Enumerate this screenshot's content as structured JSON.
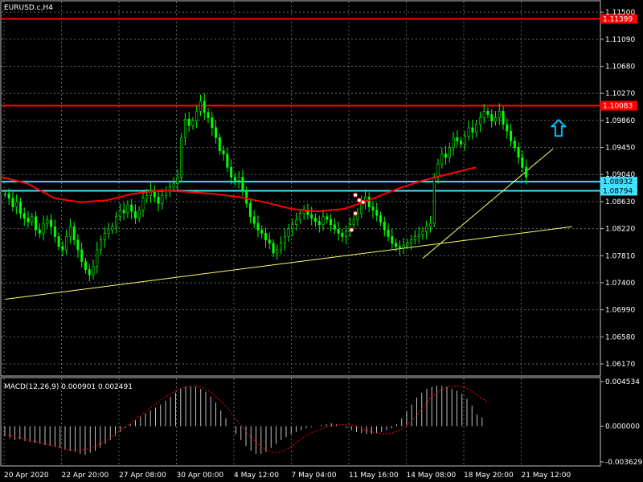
{
  "symbol_label": "EURUSD.c,H4",
  "colors": {
    "background": "#000000",
    "frame": "#c0c0c0",
    "grid": "#5a6a6a",
    "candle": "#00ff00",
    "ma": "#ff0000",
    "hline_red": "#ff0000",
    "hline_cyan": "#40e0ff",
    "trendline": "#ffff66",
    "arrow": "#00bfff",
    "macd_hist": "#c0c0c0",
    "macd_signal": "#ff0000",
    "text": "#ffffff"
  },
  "price_axis": {
    "min": 1.06,
    "max": 1.1166,
    "ticks": [
      "1.11500",
      "1.11090",
      "1.10680",
      "1.10270",
      "1.09860",
      "1.09450",
      "1.09040",
      "1.08630",
      "1.08220",
      "1.07810",
      "1.07400",
      "1.06990",
      "1.06580",
      "1.06170"
    ]
  },
  "time_axis": {
    "labels": [
      "20 Apr 2020",
      "22 Apr 20:00",
      "27 Apr 08:00",
      "30 Apr 00:00",
      "4 May 12:00",
      "7 May 04:00",
      "11 May 16:00",
      "14 May 08:00",
      "18 May 20:00",
      "21 May 12:00"
    ]
  },
  "price_lines": [
    {
      "label": "1.11399",
      "value": 1.11399,
      "color": "red"
    },
    {
      "label": "1.10083",
      "value": 1.10083,
      "color": "red"
    },
    {
      "label": "1.08932",
      "value": 1.08932,
      "color": "cyan"
    },
    {
      "label": "1.08794",
      "value": 1.08794,
      "color": "cyan"
    }
  ],
  "chart_data": {
    "type": "candlestick",
    "instrument": "EURUSD.c",
    "timeframe": "H4",
    "close_series": [
      1.0875,
      1.0868,
      1.0855,
      1.0862,
      1.0845,
      1.0838,
      1.0832,
      1.084,
      1.082,
      1.0815,
      1.083,
      1.0835,
      1.0825,
      1.081,
      1.0795,
      1.079,
      1.081,
      1.0825,
      1.0805,
      1.079,
      1.0772,
      1.076,
      1.0752,
      1.0765,
      1.079,
      1.0805,
      1.0815,
      1.082,
      1.0825,
      1.084,
      1.085,
      1.0846,
      1.0858,
      1.0848,
      1.0838,
      1.085,
      1.0868,
      1.0872,
      1.088,
      1.087,
      1.086,
      1.0872,
      1.088,
      1.0885,
      1.089,
      1.09,
      1.096,
      1.0988,
      1.0978,
      1.0985,
      1.1,
      1.1015,
      1.0998,
      1.099,
      1.0975,
      1.096,
      1.094,
      1.0935,
      1.0915,
      1.09,
      1.0895,
      1.09,
      1.088,
      1.086,
      1.084,
      1.083,
      1.082,
      1.0815,
      1.0805,
      1.08,
      1.0785,
      1.079,
      1.08,
      1.081,
      1.0822,
      1.0828,
      1.0835,
      1.0845,
      1.085,
      1.0843,
      1.0838,
      1.0833,
      1.0828,
      1.084,
      1.0836,
      1.0828,
      1.0821,
      1.0815,
      1.081,
      1.0818,
      1.0828,
      1.0836,
      1.0845,
      1.0862,
      1.087,
      1.0855,
      1.085,
      1.0842,
      1.0832,
      1.082,
      1.081,
      1.08,
      1.0795,
      1.0793,
      1.0797,
      1.08,
      1.0805,
      1.081,
      1.0813,
      1.0818,
      1.0825,
      1.083,
      1.09,
      1.092,
      1.0935,
      1.093,
      1.0945,
      1.096,
      1.0955,
      1.095,
      1.0962,
      1.0975,
      1.0968,
      1.098,
      1.099,
      1.1,
      1.0995,
      1.0985,
      1.099,
      1.1,
      1.098,
      1.097,
      1.0955,
      1.0945,
      1.093,
      1.0915,
      1.09
    ],
    "moving_average": {
      "values": [
        1.09,
        1.089,
        1.0868,
        1.0862,
        1.0865,
        1.0875,
        1.088,
        1.0878,
        1.0875,
        1.087,
        1.0862,
        1.0852,
        1.0848,
        1.0852,
        1.0866,
        1.0882,
        1.0895,
        1.0905,
        1.0915
      ]
    },
    "trendlines": [
      {
        "from": {
          "candle": 0,
          "price": 1.0715
        },
        "to": {
          "candle": 148,
          "price": 1.0825
        }
      },
      {
        "from": {
          "candle": 109,
          "price": 1.0777
        },
        "to": {
          "candle": 143,
          "price": 1.0943
        }
      }
    ],
    "arrow_signal": {
      "type": "buy",
      "candle": 135,
      "price": 1.096
    },
    "markers": [
      {
        "candle": 91,
        "price": 1.0873
      },
      {
        "candle": 92,
        "price": 1.0865
      },
      {
        "candle": 93,
        "price": 1.0862
      },
      {
        "candle": 91,
        "price": 1.0845
      },
      {
        "candle": 90,
        "price": 1.082
      }
    ]
  },
  "macd": {
    "title": "MACD(12,26,9) 0.000901 0.002491",
    "ticks": [
      "0.004534",
      "0.000000",
      "-0.003629"
    ],
    "min": -0.003629,
    "max": 0.004534,
    "histogram": [
      -0.001,
      -0.0012,
      -0.0014,
      -0.0013,
      -0.0015,
      -0.0016,
      -0.0017,
      -0.0018,
      -0.0019,
      -0.002,
      -0.0021,
      -0.0022,
      -0.0024,
      -0.0025,
      -0.0026,
      -0.0028,
      -0.0029,
      -0.0027,
      -0.0025,
      -0.0022,
      -0.0018,
      -0.0014,
      -0.001,
      -0.0006,
      -0.0002,
      0.0002,
      0.0006,
      0.001,
      0.0013,
      0.0016,
      0.0019,
      0.0022,
      0.0026,
      0.003,
      0.0034,
      0.0038,
      0.004,
      0.0041,
      0.004,
      0.0038,
      0.0035,
      0.003,
      0.0024,
      0.0016,
      0.0008,
      0.0,
      -0.0008,
      -0.0014,
      -0.002,
      -0.0025,
      -0.0028,
      -0.0028,
      -0.0026,
      -0.0022,
      -0.0018,
      -0.0014,
      -0.0011,
      -0.0008,
      -0.0006,
      -0.0004,
      -0.0002,
      -0.0001,
      0.0,
      0.0001,
      0.0002,
      0.0003,
      0.0002,
      0.0,
      -0.0002,
      -0.0004,
      -0.0006,
      -0.0007,
      -0.0008,
      -0.0008,
      -0.0007,
      -0.0006,
      -0.0004,
      -0.0002,
      0.0002,
      0.0008,
      0.0015,
      0.0022,
      0.0029,
      0.0034,
      0.0038,
      0.004,
      0.0041,
      0.0041,
      0.004,
      0.0038,
      0.0036,
      0.0033,
      0.0028,
      0.0021,
      0.0012,
      0.0009
    ],
    "signal": [
      -0.0008,
      -0.001,
      -0.0012,
      -0.0014,
      -0.0016,
      -0.0018,
      -0.002,
      -0.0022,
      -0.0024,
      -0.0025,
      -0.0024,
      -0.0022,
      -0.0018,
      -0.0014,
      -0.0008,
      -0.0002,
      0.0004,
      0.001,
      0.0016,
      0.0022,
      0.0028,
      0.0033,
      0.0038,
      0.004,
      0.0041,
      0.0039,
      0.0035,
      0.0028,
      0.002,
      0.001,
      0.0,
      -0.001,
      -0.0018,
      -0.0024,
      -0.0027,
      -0.0026,
      -0.0022,
      -0.0016,
      -0.001,
      -0.0006,
      -0.0003,
      0.0,
      0.0001,
      0.0002,
      0.0001,
      -0.0002,
      -0.0005,
      -0.0007,
      -0.0008,
      -0.0007,
      -0.0004,
      0.0002,
      0.001,
      0.002,
      0.003,
      0.0036,
      0.004,
      0.0041,
      0.004,
      0.0036,
      0.003,
      0.0025
    ]
  }
}
